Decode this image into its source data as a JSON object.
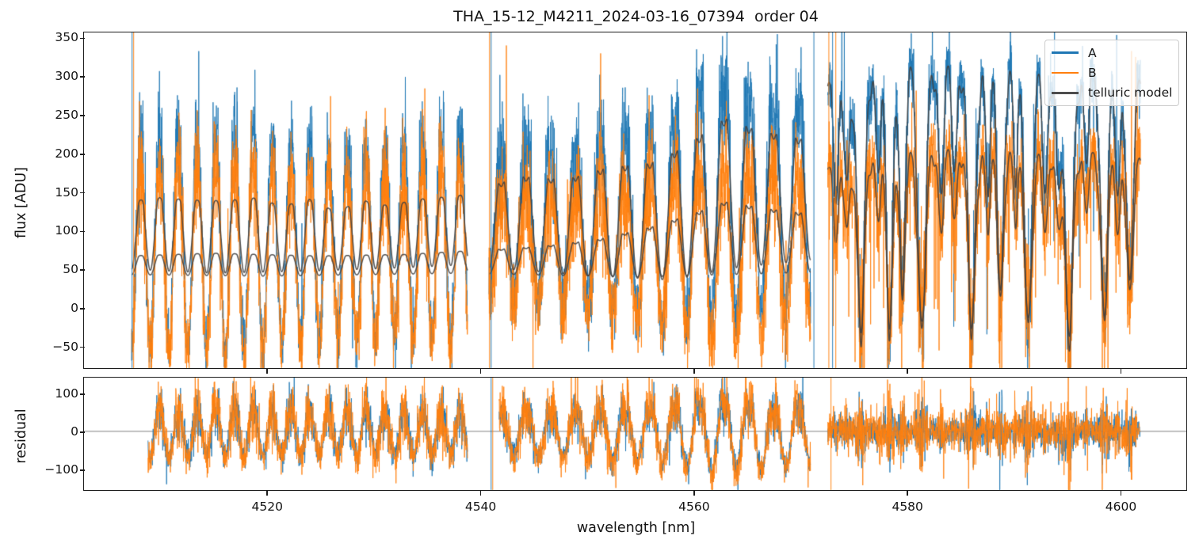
{
  "chart_data": {
    "type": "line",
    "title": "THA_15-12_M4211_2024-03-16_07394  order 04",
    "xlabel": "wavelength [nm]",
    "xlim": [
      4502.9,
      4606.2
    ],
    "xticks": [
      {
        "v": 4520,
        "label": "4520"
      },
      {
        "v": 4540,
        "label": "4540"
      },
      {
        "v": 4560,
        "label": "4560"
      },
      {
        "v": 4580,
        "label": "4580"
      },
      {
        "v": 4600,
        "label": "4600"
      }
    ],
    "panels": [
      {
        "name": "flux",
        "ylabel": "flux [ADU]",
        "ylim": [
          -78,
          356.5
        ],
        "yticks": [
          {
            "v": 350,
            "label": "350"
          },
          {
            "v": 300,
            "label": "300"
          },
          {
            "v": 250,
            "label": "250"
          },
          {
            "v": 200,
            "label": "200"
          },
          {
            "v": 150,
            "label": "150"
          },
          {
            "v": 100,
            "label": "100"
          },
          {
            "v": 50,
            "label": "50"
          },
          {
            "v": 0,
            "label": "0"
          },
          {
            "v": -50,
            "label": "−50"
          }
        ]
      },
      {
        "name": "residual",
        "ylabel": "residual",
        "ylim": [
          -154,
          141
        ],
        "yticks": [
          {
            "v": 100,
            "label": "100"
          },
          {
            "v": 0,
            "label": "0"
          },
          {
            "v": -100,
            "label": "−100"
          }
        ],
        "zero_line": true
      }
    ],
    "legend": [
      {
        "label": "A",
        "color": "#1f77b4"
      },
      {
        "label": "B",
        "color": "#ff7f0e"
      },
      {
        "label": "telluric model",
        "color": "#4d4d4d"
      }
    ],
    "colors": {
      "A": "rgba(31,119,180,0.88)",
      "B": "rgba(255,127,14,0.88)",
      "model": "rgba(64,64,64,0.9)",
      "zero_line": "#808080",
      "spine": "#1c1c1c"
    },
    "sampling_step_nm": 0.016,
    "residual_step_nm": 0.02,
    "noise_seed": 20240316,
    "segments": [
      {
        "id": 1,
        "type": "osc",
        "x0": 4507.35,
        "x1": 4538.85,
        "period": 1.76,
        "notch": 0.1,
        "contA": [
          [
            4507.35,
            148
          ],
          [
            4510,
            153
          ],
          [
            4513,
            150
          ],
          [
            4516,
            149
          ],
          [
            4519,
            153
          ],
          [
            4521.5,
            141
          ],
          [
            4524,
            151
          ],
          [
            4526.5,
            133
          ],
          [
            4529,
            149
          ],
          [
            4531.5,
            141
          ],
          [
            4534,
            150
          ],
          [
            4536.5,
            153
          ],
          [
            4538.85,
            157
          ]
        ],
        "floorA": [
          [
            4507.35,
            50
          ],
          [
            4515,
            45
          ],
          [
            4525,
            48
          ],
          [
            4533,
            52
          ],
          [
            4538.85,
            56
          ]
        ],
        "contB": [
          [
            4507.35,
            70
          ],
          [
            4515,
            74
          ],
          [
            4525,
            70
          ],
          [
            4533,
            72
          ],
          [
            4538.85,
            77
          ]
        ],
        "floorB": [
          [
            4507.35,
            43
          ],
          [
            4520,
            41
          ],
          [
            4538.85,
            45
          ]
        ],
        "ampA": 2.9,
        "noiseA": 26,
        "baseB": 72,
        "oscB": 2.5,
        "noiseB": 30,
        "res_x0": 4508.9,
        "resA": 30,
        "resB": 36,
        "resOscA": 1.25,
        "resOscB": 1.35
      },
      {
        "id": 2,
        "type": "osc",
        "x0": 4540.85,
        "x1": 4571.0,
        "period": 2.32,
        "notch": 0.18,
        "contA": [
          [
            4540.85,
            175
          ],
          [
            4544,
            190
          ],
          [
            4548,
            186
          ],
          [
            4552,
            205
          ],
          [
            4556,
            212
          ],
          [
            4559,
            235
          ],
          [
            4563,
            278
          ],
          [
            4565.5,
            262
          ],
          [
            4568,
            252
          ],
          [
            4571,
            242
          ]
        ],
        "floorA": [
          [
            4540.85,
            52
          ],
          [
            4550,
            42
          ],
          [
            4558,
            36
          ],
          [
            4564,
            52
          ],
          [
            4571,
            62
          ]
        ],
        "contB": [
          [
            4540.85,
            80
          ],
          [
            4546,
            86
          ],
          [
            4551,
            96
          ],
          [
            4556,
            115
          ],
          [
            4560,
            135
          ],
          [
            4563,
            153
          ],
          [
            4567,
            142
          ],
          [
            4571,
            134
          ]
        ],
        "floorB": [
          [
            4540.85,
            44
          ],
          [
            4555,
            40
          ],
          [
            4571,
            46
          ]
        ],
        "ampA": 1.55,
        "noiseA": 30,
        "baseB": 85,
        "oscB": 1.15,
        "noiseB": 32,
        "res_x0": 4541.8,
        "resA": 28,
        "resB": 34,
        "resOscA": 0.9,
        "resOscB": 1.0
      },
      {
        "id": 3,
        "type": "abs",
        "x0": 4572.6,
        "x1": 4601.9,
        "contA": [
          [
            4572.6,
            292
          ],
          [
            4576,
            310
          ],
          [
            4580,
            318
          ],
          [
            4585,
            317
          ],
          [
            4590,
            313
          ],
          [
            4595,
            311
          ],
          [
            4599,
            306
          ],
          [
            4601.9,
            298
          ]
        ],
        "contB": [
          [
            4572.6,
            182
          ],
          [
            4576,
            198
          ],
          [
            4582,
            208
          ],
          [
            4590,
            206
          ],
          [
            4596,
            204
          ],
          [
            4601.9,
            196
          ]
        ],
        "lines": [
          [
            4573.4,
            0.5,
            0.3
          ],
          [
            4574.4,
            0.45,
            0.32
          ],
          [
            4575.7,
            1.07,
            0.48
          ],
          [
            4577.3,
            0.38,
            0.3
          ],
          [
            4578.4,
            1.05,
            0.42
          ],
          [
            4579.6,
            0.95,
            0.33
          ],
          [
            4581.4,
            1.08,
            0.5
          ],
          [
            4583.2,
            0.5,
            0.33
          ],
          [
            4584.5,
            0.42,
            0.3
          ],
          [
            4586.1,
            1.06,
            0.48
          ],
          [
            4587.6,
            0.45,
            0.3
          ],
          [
            4588.8,
            0.92,
            0.4
          ],
          [
            4590.2,
            0.4,
            0.28
          ],
          [
            4591.4,
            1.06,
            0.48
          ],
          [
            4593.0,
            0.5,
            0.33
          ],
          [
            4594.2,
            0.45,
            0.3
          ],
          [
            4595.2,
            1.1,
            0.52
          ],
          [
            4596.8,
            0.36,
            0.28
          ],
          [
            4598.5,
            1.02,
            0.44
          ],
          [
            4599.8,
            0.5,
            0.3
          ],
          [
            4600.9,
            0.88,
            0.42
          ]
        ],
        "ripple": {
          "period": 0.85,
          "depth": 0.1
        },
        "noiseA": 27,
        "noiseB": 33,
        "resA": 20,
        "resB": 26
      }
    ],
    "vlines_main": [
      {
        "x": 4507.4,
        "series": "A"
      },
      {
        "x": 4507.55,
        "series": "B"
      },
      {
        "x": 4540.9,
        "series": "B"
      },
      {
        "x": 4541.05,
        "series": "A"
      },
      {
        "x": 4571.3,
        "series": "A"
      },
      {
        "x": 4572.7,
        "series": "B"
      },
      {
        "x": 4573.05,
        "series": "A"
      },
      {
        "x": 4573.35,
        "series": "B"
      }
    ],
    "vlines_residual": [
      {
        "x": 4541.05,
        "series": "A"
      },
      {
        "x": 4541.2,
        "series": "B"
      },
      {
        "x": 4572.9,
        "series": "B"
      }
    ]
  }
}
